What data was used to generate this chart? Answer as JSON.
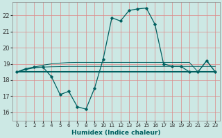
{
  "xlabel": "Humidex (Indice chaleur)",
  "background_color": "#cce8e4",
  "grid_color": "#dd8888",
  "line_color": "#006060",
  "xlim": [
    -0.5,
    23.5
  ],
  "ylim": [
    15.5,
    22.8
  ],
  "yticks": [
    16,
    17,
    18,
    19,
    20,
    21,
    22
  ],
  "xticks": [
    0,
    1,
    2,
    3,
    4,
    5,
    6,
    7,
    8,
    9,
    10,
    11,
    12,
    13,
    14,
    15,
    16,
    17,
    18,
    19,
    20,
    21,
    22,
    23
  ],
  "main_series": [
    18.5,
    18.7,
    18.8,
    18.8,
    18.2,
    17.1,
    17.3,
    16.35,
    16.2,
    17.5,
    19.3,
    21.85,
    21.65,
    22.3,
    22.4,
    22.45,
    21.45,
    19.0,
    18.85,
    18.85,
    18.5,
    18.5,
    19.2,
    18.5
  ],
  "flat_line": [
    18.5,
    18.5,
    18.5,
    18.5,
    18.5,
    18.5,
    18.5,
    18.5,
    18.5,
    18.5,
    18.5,
    18.5,
    18.5,
    18.5,
    18.5,
    18.5,
    18.5,
    18.5,
    18.5,
    18.5,
    18.5,
    18.5,
    18.5,
    18.5
  ],
  "slope_line1": [
    18.5,
    18.65,
    18.75,
    18.8,
    18.82,
    18.83,
    18.84,
    18.84,
    18.84,
    18.84,
    18.84,
    18.84,
    18.84,
    18.84,
    18.84,
    18.84,
    18.84,
    18.84,
    18.84,
    18.84,
    18.84,
    18.84,
    18.84,
    18.84
  ],
  "slope_line2": [
    18.5,
    18.65,
    18.8,
    18.92,
    19.0,
    19.05,
    19.08,
    19.09,
    19.09,
    19.09,
    19.09,
    19.09,
    19.09,
    19.09,
    19.09,
    19.09,
    19.09,
    19.09,
    19.09,
    19.09,
    19.09,
    18.5,
    19.2,
    18.5
  ]
}
